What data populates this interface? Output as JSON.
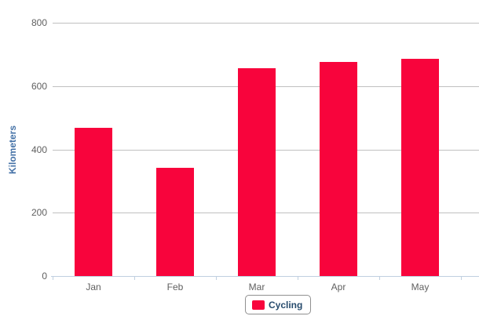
{
  "chart_data": {
    "type": "bar",
    "title": "",
    "xlabel": "",
    "ylabel": "Kilometers",
    "categories": [
      "Jan",
      "Feb",
      "Mar",
      "Apr",
      "May"
    ],
    "series": [
      {
        "name": "Cycling",
        "values": [
          467,
          343,
          657,
          677,
          686
        ],
        "color": "#F8043C"
      }
    ],
    "ylim": [
      0,
      800
    ],
    "yticks": [
      0,
      200,
      400,
      600,
      800
    ],
    "grid": true,
    "legend_position": "bottom-center"
  },
  "colors": {
    "bar": "#F8043C",
    "gridline": "#C0C0C0",
    "axis_line": "#C0D0E0",
    "tick": "#C0D0E0",
    "tick_label": "#606060",
    "y_title": "#4572A7",
    "legend_text": "#274B6D",
    "legend_border": "#909090",
    "background": "#FFFFFF"
  }
}
